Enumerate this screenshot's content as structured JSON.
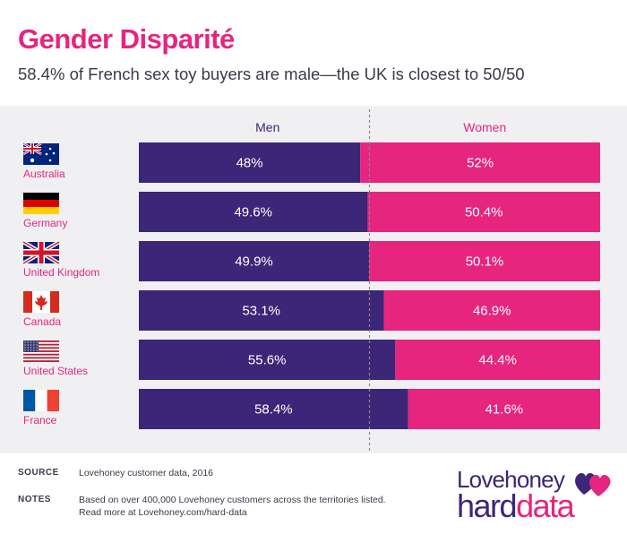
{
  "header": {
    "title": "Gender Disparité",
    "subtitle": "58.4% of French sex toy buyers are male—the UK is closest to 50/50"
  },
  "colors": {
    "men": "#3d2577",
    "women": "#e5257e",
    "accent": "#e5257e",
    "panel": "#f0f0f2"
  },
  "chart_data": {
    "type": "bar",
    "stacked": true,
    "orientation": "horizontal",
    "percent": true,
    "categories": [
      "Australia",
      "Germany",
      "United Kingdom",
      "Canada",
      "United States",
      "France"
    ],
    "flags": [
      "australia-flag-icon",
      "germany-flag-icon",
      "uk-flag-icon",
      "canada-flag-icon",
      "usa-flag-icon",
      "france-flag-icon"
    ],
    "series": [
      {
        "name": "Men",
        "values": [
          48,
          49.6,
          49.9,
          53.1,
          55.6,
          58.4
        ],
        "labels": [
          "48%",
          "49.6%",
          "49.9%",
          "53.1%",
          "55.6%",
          "58.4%"
        ]
      },
      {
        "name": "Women",
        "values": [
          52,
          50.4,
          50.1,
          46.9,
          44.4,
          41.6
        ],
        "labels": [
          "52%",
          "50.4%",
          "50.1%",
          "46.9%",
          "44.4%",
          "41.6%"
        ]
      }
    ],
    "xlim": [
      0,
      100
    ],
    "reference_line": 50,
    "legend": "top"
  },
  "footer": {
    "source_label": "SOURCE",
    "source_text": "Lovehoney customer data, 2016",
    "notes_label": "NOTES",
    "notes_line1": "Based on over 400,000 Lovehoney customers across the territories listed.",
    "notes_line2": "Read more at Lovehoney.com/hard-data"
  },
  "logo": {
    "top": "Lovehoney",
    "hard": "hard",
    "data": "data"
  }
}
